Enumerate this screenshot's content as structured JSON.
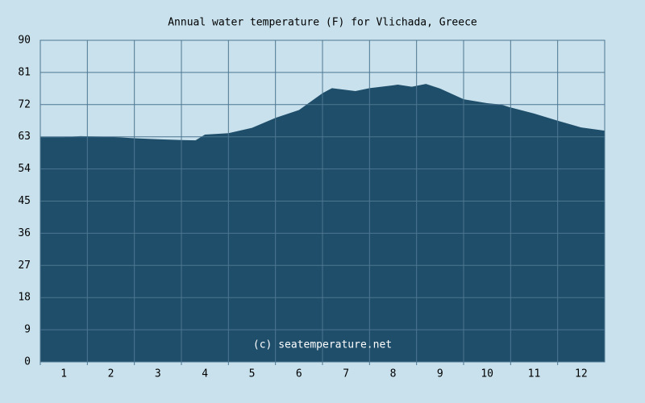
{
  "chart_data": {
    "type": "area",
    "title": "Annual water temperature (F) for Vlichada, Greece",
    "watermark": "(c) seatemperature.net",
    "categories": [
      "1",
      "2",
      "3",
      "4",
      "5",
      "6",
      "7",
      "8",
      "9",
      "10",
      "11",
      "12"
    ],
    "x": [
      0,
      0.5,
      0.85,
      1.5,
      2.0,
      2.5,
      3.0,
      3.3,
      3.5,
      4.0,
      4.5,
      5.0,
      5.5,
      6.0,
      6.2,
      6.7,
      7.0,
      7.5,
      7.6,
      7.9,
      8.2,
      8.5,
      9.0,
      9.5,
      9.8,
      10.0,
      10.5,
      11.0,
      11.5,
      12.0
    ],
    "values": [
      62.9,
      62.9,
      63.2,
      63.0,
      62.6,
      62.3,
      62.1,
      62.0,
      63.6,
      64.0,
      65.5,
      68.3,
      70.5,
      75.2,
      76.6,
      75.8,
      76.6,
      77.4,
      77.6,
      77.0,
      77.8,
      76.5,
      73.5,
      72.4,
      72.0,
      71.2,
      69.5,
      67.5,
      65.6,
      64.7
    ],
    "color": "#1f4e6b",
    "xlim": [
      0,
      12
    ],
    "ylim": [
      0,
      90
    ],
    "yticks": [
      0,
      9,
      18,
      27,
      36,
      45,
      54,
      63,
      72,
      81,
      90
    ],
    "grid": true
  }
}
